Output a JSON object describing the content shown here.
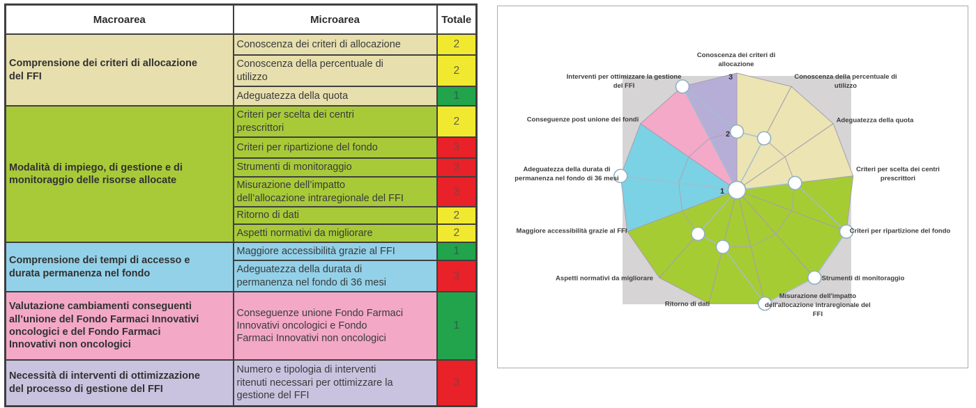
{
  "table": {
    "headers": {
      "macroarea": "Macroarea",
      "microarea": "Microarea",
      "totale": "Totale"
    },
    "score_styles": {
      "1": {
        "bg": "#21A44B",
        "fg": "#2F5F49"
      },
      "2": {
        "bg": "#F0E92F",
        "fg": "#63604A"
      },
      "3": {
        "bg": "#E92129",
        "fg": "#8F3A3C"
      }
    },
    "groups": [
      {
        "macroarea": "Comprensione dei criteri di allocazione\ndel FFI",
        "bg": "#E7DFAD",
        "rows": [
          {
            "microarea": "Conoscenza dei criteri di allocazione",
            "totale": "2"
          },
          {
            "microarea": "Conoscenza della percentuale di\nutilizzo",
            "totale": "2"
          },
          {
            "microarea": "Adeguatezza della quota",
            "totale": "1"
          }
        ]
      },
      {
        "macroarea": "Modalità di impiego, di gestione e di\nmonitoraggio delle risorse allocate",
        "bg": "#A8CA39",
        "rows": [
          {
            "microarea": "Criteri per scelta dei centri\nprescrittori",
            "totale": "2"
          },
          {
            "microarea": "Criteri per ripartizione del fondo",
            "totale": "3"
          },
          {
            "microarea": "Strumenti di monitoraggio",
            "totale": "3"
          },
          {
            "microarea": "Misurazione dell’impatto\ndell’allocazione intraregionale del FFI",
            "totale": "3"
          },
          {
            "microarea": "Ritorno di dati",
            "totale": "2"
          },
          {
            "microarea": "Aspetti normativi da migliorare",
            "totale": "2"
          }
        ]
      },
      {
        "macroarea": "Comprensione dei tempi di accesso e\ndurata permanenza nel fondo",
        "bg": "#93D1E9",
        "rows": [
          {
            "microarea": "Maggiore accessibilità grazie al FFI",
            "totale": "1"
          },
          {
            "microarea": "Adeguatezza della durata di\npermanenza nel fondo di 36 mesi",
            "totale": "3"
          }
        ]
      },
      {
        "macroarea": "Valutazione cambiamenti conseguenti\nall’unione del Fondo Farmaci Innovativi\noncologici e del Fondo Farmaci\nInnovativi non oncologici",
        "bg": "#F3A8C6",
        "rows": [
          {
            "microarea": "Conseguenze unione Fondo Farmaci\nInnovativi oncologici e Fondo\nFarmaci Innovativi non oncologici",
            "totale": "1"
          }
        ]
      },
      {
        "macroarea": "Necessità di interventi di ottimizzazione\ndel processo di gestione del FFI",
        "bg": "#C9C3DF",
        "rows": [
          {
            "microarea": "Numero e tipologia di interventi\nritenuti necessari per ottimizzare la\ngestione del FFI",
            "totale": "3"
          }
        ]
      }
    ]
  },
  "chart_data": {
    "type": "radar",
    "r_axis": {
      "min": 1,
      "max": 3,
      "ticks": [
        "1",
        "2",
        "3"
      ]
    },
    "legend": "none",
    "grid": "on",
    "plot_bg": "#D6D4D4",
    "grid_color": "#A9A3B5",
    "line_color": "#9FBFD3",
    "marker_fill": "#FFFFFF",
    "marker_stroke": "#8FAFC2",
    "axes": [
      {
        "label": "Conoscenza dei criteri di\nallocazione",
        "value": 2,
        "sector_color": "#ECE4B2"
      },
      {
        "label": "Conoscenza della percentuale di\nutilizzo",
        "value": 2,
        "sector_color": "#ECE4B2"
      },
      {
        "label": "Adeguatezza della quota",
        "value": 1,
        "sector_color": "#ECE4B2"
      },
      {
        "label": "Criteri per scelta dei centri\nprescrittori",
        "value": 2,
        "sector_color": "#A6CC33"
      },
      {
        "label": "Criteri per ripartizione del fondo",
        "value": 3,
        "sector_color": "#A6CC33"
      },
      {
        "label": "Strumenti di monitoraggio",
        "value": 3,
        "sector_color": "#A6CC33"
      },
      {
        "label": "Misurazione dell'impatto\ndell'allocazione intraregionale del\nFFI",
        "value": 3,
        "sector_color": "#A6CC33"
      },
      {
        "label": "Ritorno di dati",
        "value": 2,
        "sector_color": "#A6CC33"
      },
      {
        "label": "Aspetti normativi da migliorare",
        "value": 2,
        "sector_color": "#A6CC33"
      },
      {
        "label": "Maggiore accessibilità grazie al FFI",
        "value": 1,
        "sector_color": "#7BD2E4"
      },
      {
        "label": "Adeguatezza della durata di\npermanenza nel fondo di 36 mesi",
        "value": 3,
        "sector_color": "#7BD2E4"
      },
      {
        "label": "Conseguenze post unione dei fondi",
        "value": 1,
        "sector_color": "#F4A9C8"
      },
      {
        "label": "Interventi per ottimizzare la gestione\ndel FFI",
        "value": 3,
        "sector_color": "#B7AED7"
      }
    ],
    "series": [
      {
        "name": "Totale",
        "values": [
          2,
          2,
          1,
          2,
          3,
          3,
          3,
          2,
          2,
          1,
          3,
          1,
          3
        ]
      }
    ]
  }
}
